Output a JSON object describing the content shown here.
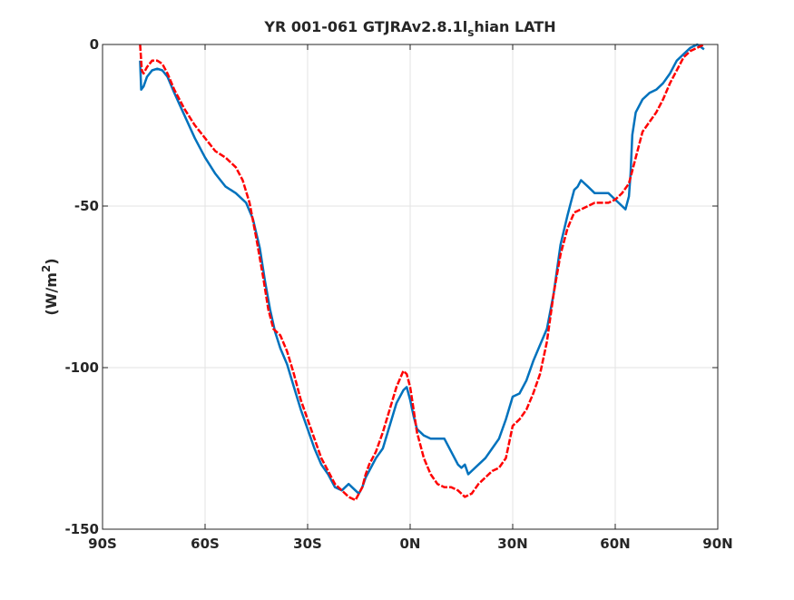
{
  "chart_data": {
    "type": "line",
    "title": "YR 001-061 GTJRAv2.8.1l",
    "title_subscript": "s",
    "title_suffix": "hian LATH",
    "ylabel_prefix": "(W/m",
    "ylabel_superscript": "2",
    "ylabel_suffix": ")",
    "xlabel": "",
    "xlim": [
      -90,
      90
    ],
    "ylim": [
      -150,
      0
    ],
    "xticks": [
      -90,
      -60,
      -30,
      0,
      30,
      60,
      90
    ],
    "xtick_labels": [
      "90S",
      "60S",
      "30S",
      "0N",
      "30N",
      "60N",
      "90N"
    ],
    "yticks": [
      0,
      -50,
      -100,
      -150
    ],
    "ytick_labels": [
      "0",
      "-50",
      "-100",
      "-150"
    ],
    "grid": true,
    "series": [
      {
        "color": "#0072BD",
        "style": "solid",
        "x": [
          -79,
          -78.7,
          -78,
          -77,
          -75.5,
          -74,
          -72.5,
          -71,
          -69,
          -66,
          -63,
          -60,
          -57,
          -54,
          -51,
          -48,
          -46,
          -44,
          -42.5,
          -41,
          -39.5,
          -38,
          -36,
          -34,
          -32,
          -30,
          -28,
          -26,
          -24,
          -22,
          -20,
          -18,
          -16,
          -15,
          -14,
          -13,
          -12,
          -10,
          -8,
          -6,
          -4,
          -2,
          -1,
          0,
          1,
          2,
          3,
          4,
          6,
          8,
          10,
          12,
          14,
          15,
          16,
          17,
          18,
          20,
          22,
          24,
          26,
          28,
          30,
          32,
          34,
          36,
          38,
          40,
          42,
          44,
          46,
          47,
          48,
          49,
          50,
          52,
          54,
          56,
          58,
          60,
          62,
          63,
          64,
          64.5,
          65,
          66,
          68,
          70,
          72,
          74,
          76,
          78,
          80,
          82,
          84,
          86
        ],
        "y": [
          -5,
          -14,
          -13,
          -10,
          -8,
          -7.5,
          -8,
          -10,
          -15,
          -22,
          -29,
          -35,
          -40,
          -44,
          -46,
          -49,
          -54,
          -63,
          -73,
          -82,
          -89,
          -94,
          -99,
          -106,
          -113,
          -119,
          -125,
          -130,
          -133,
          -137,
          -138,
          -136,
          -138,
          -139,
          -137,
          -134,
          -132,
          -128,
          -125,
          -118,
          -111,
          -107,
          -106,
          -110,
          -115,
          -119,
          -120,
          -121,
          -122,
          -122,
          -122,
          -126,
          -130,
          -131,
          -130,
          -133,
          -132,
          -130,
          -128,
          -125,
          -122,
          -116,
          -109,
          -108,
          -104,
          -98,
          -93,
          -88,
          -77,
          -62,
          -53,
          -49,
          -45,
          -44,
          -42,
          -44,
          -46,
          -46,
          -46,
          -48,
          -50,
          -51,
          -47,
          -40,
          -28,
          -21,
          -17,
          -15,
          -14,
          -12,
          -9,
          -5,
          -3,
          -1,
          0,
          -1.5
        ]
      },
      {
        "color": "#FF0000",
        "style": "dashed",
        "x": [
          -79,
          -78.5,
          -78,
          -77,
          -75.5,
          -74,
          -72.5,
          -71,
          -69,
          -66,
          -63,
          -60,
          -57,
          -54,
          -51,
          -49,
          -47,
          -45,
          -43,
          -41.5,
          -40,
          -38,
          -36,
          -34,
          -32,
          -30,
          -28,
          -26,
          -24,
          -22,
          -20,
          -18,
          -16,
          -14,
          -13,
          -12,
          -10,
          -8,
          -6,
          -4,
          -2,
          -1,
          0,
          1,
          2,
          4,
          6,
          8,
          10,
          12,
          14,
          16,
          18,
          20,
          22,
          24,
          26,
          28,
          30,
          32,
          34,
          36,
          38,
          40,
          42,
          44,
          46,
          48,
          50,
          52,
          54,
          56,
          58,
          60,
          62,
          64,
          66,
          68,
          70,
          72,
          74,
          76,
          78,
          80,
          82,
          84,
          86
        ],
        "y": [
          0,
          -8,
          -9,
          -7,
          -5,
          -5,
          -6,
          -9,
          -14,
          -20,
          -25,
          -29,
          -33,
          -35,
          -38,
          -42,
          -49,
          -60,
          -72,
          -82,
          -88,
          -90,
          -95,
          -102,
          -110,
          -116,
          -122,
          -128,
          -132,
          -136,
          -138,
          -140,
          -141,
          -137,
          -133,
          -130,
          -126,
          -120,
          -113,
          -106,
          -101,
          -102,
          -106,
          -113,
          -120,
          -128,
          -133,
          -136,
          -137,
          -137,
          -138,
          -140,
          -139,
          -136,
          -134,
          -132,
          -131,
          -128,
          -118,
          -116,
          -113,
          -108,
          -102,
          -92,
          -77,
          -65,
          -57,
          -52,
          -51,
          -50,
          -49,
          -49,
          -49,
          -48,
          -46,
          -43,
          -35,
          -27,
          -24,
          -21,
          -17,
          -12,
          -8,
          -4,
          -2,
          -1,
          0
        ]
      }
    ]
  }
}
